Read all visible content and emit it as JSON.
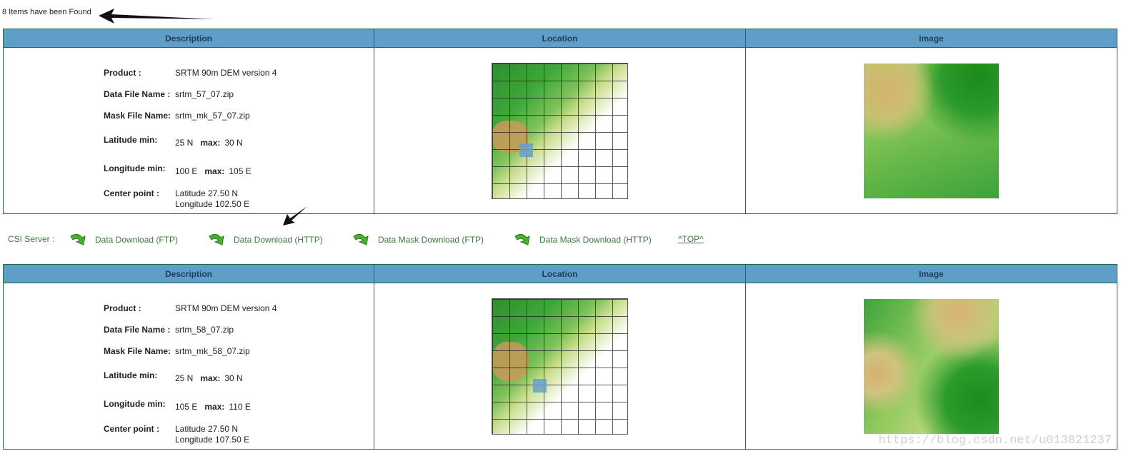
{
  "found_text": "8 Items have been Found",
  "headers": {
    "description": "Description",
    "location": "Location",
    "image": "Image"
  },
  "labels": {
    "product": "Product :",
    "data_file": "Data File Name :",
    "mask_file": "Mask File Name:",
    "lat_min": "Latitude min:",
    "lon_min": "Longitude min:",
    "max": "max:",
    "center": "Center point :"
  },
  "results": [
    {
      "product": "SRTM 90m DEM version 4",
      "data_file": "srtm_57_07.zip",
      "mask_file": "srtm_mk_57_07.zip",
      "lat_min": "25 N",
      "lat_max": "30 N",
      "lon_min": "100 E",
      "lon_max": "105 E",
      "center_lat": "Latitude 27.50 N",
      "center_lon": "Longitude 102.50 E"
    },
    {
      "product": "SRTM 90m DEM version 4",
      "data_file": "srtm_58_07.zip",
      "mask_file": "srtm_mk_58_07.zip",
      "lat_min": "25 N",
      "lat_max": "30 N",
      "lon_min": "105 E",
      "lon_max": "110 E",
      "center_lat": "Latitude 27.50 N",
      "center_lon": "Longitude 107.50 E"
    }
  ],
  "links": {
    "csi_label": "CSI Server :",
    "data_ftp": "Data Download (FTP)",
    "data_http": "Data Download (HTTP)",
    "mask_ftp": "Data Mask Download (FTP)",
    "mask_http": "Data Mask Download (HTTP)",
    "top": "^TOP^"
  },
  "watermark": "https://blog.csdn.net/u013821237",
  "colors": {
    "header_bg": "#5f9ec6",
    "border": "#1f6a4a",
    "link": "#3b7a3b"
  },
  "icons": [
    "download-arrow-icon",
    "annotation-arrow-icon"
  ]
}
